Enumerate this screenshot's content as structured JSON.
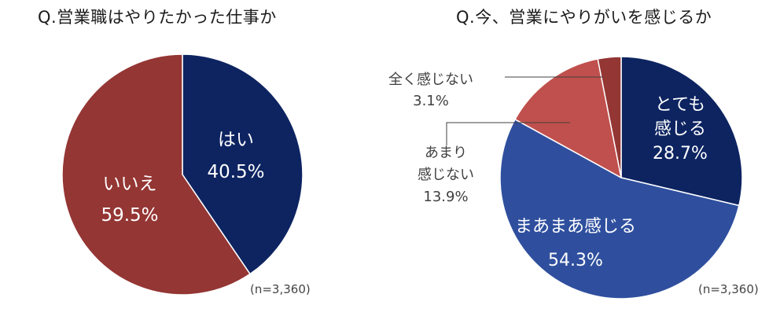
{
  "chart_data": [
    {
      "type": "pie",
      "title": "Q.営業職はやりたかった仕事か",
      "note": "(n=3,360)",
      "slices": [
        {
          "label": [
            "はい"
          ],
          "value": 40.5,
          "value_text": "40.5%",
          "color": "#0d2461",
          "text_color": "#ffffff"
        },
        {
          "label": [
            "いいえ"
          ],
          "value": 59.5,
          "value_text": "59.5%",
          "color": "#943634",
          "text_color": "#ffffff"
        }
      ]
    },
    {
      "type": "pie",
      "title": "Q.今、営業にやりがいを感じるか",
      "note": "(n=3,360)",
      "slices": [
        {
          "label": [
            "とても",
            "感じる"
          ],
          "value": 28.7,
          "value_text": "28.7%",
          "color": "#0d2461",
          "text_color": "#ffffff"
        },
        {
          "label": [
            "まあまあ感じる"
          ],
          "value": 54.3,
          "value_text": "54.3%",
          "color": "#2f4f9e",
          "text_color": "#ffffff"
        },
        {
          "label": [
            "あまり",
            "感じない"
          ],
          "value": 13.9,
          "value_text": "13.9%",
          "color": "#c0504d",
          "text_color": "#404040"
        },
        {
          "label": [
            "全く感じない"
          ],
          "value": 3.1,
          "value_text": "3.1%",
          "color": "#943634",
          "text_color": "#404040"
        }
      ]
    }
  ]
}
